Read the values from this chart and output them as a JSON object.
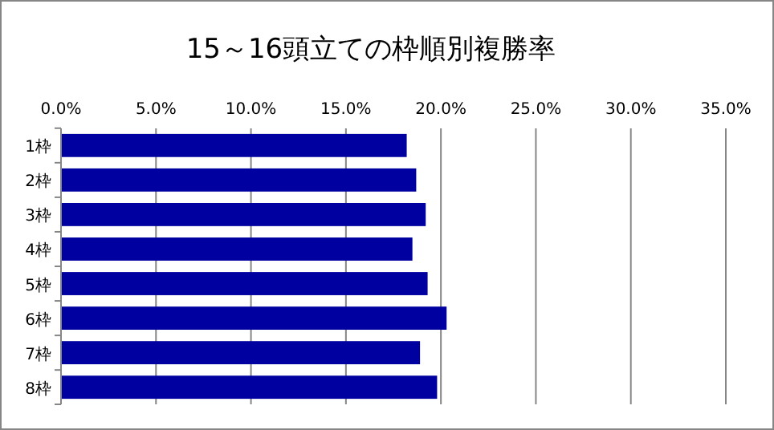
{
  "chart_data": {
    "type": "bar",
    "orientation": "horizontal",
    "title": "15～16頭立ての枠順別複勝率",
    "categories": [
      "1枠",
      "2枠",
      "3枠",
      "4枠",
      "5枠",
      "6枠",
      "7枠",
      "8枠"
    ],
    "values": [
      18.2,
      18.7,
      19.2,
      18.5,
      19.3,
      20.3,
      18.9,
      19.8
    ],
    "color": "#0000a0",
    "xlim": [
      0,
      35
    ],
    "xticks": [
      {
        "value": 0,
        "label": "0.0%"
      },
      {
        "value": 5,
        "label": "5.0%"
      },
      {
        "value": 10,
        "label": "10.0%"
      },
      {
        "value": 15,
        "label": "15.0%"
      },
      {
        "value": 20,
        "label": "20.0%"
      },
      {
        "value": 25,
        "label": "25.0%"
      },
      {
        "value": 30,
        "label": "30.0%"
      },
      {
        "value": 35,
        "label": "35.0%"
      }
    ],
    "grid": "x"
  }
}
